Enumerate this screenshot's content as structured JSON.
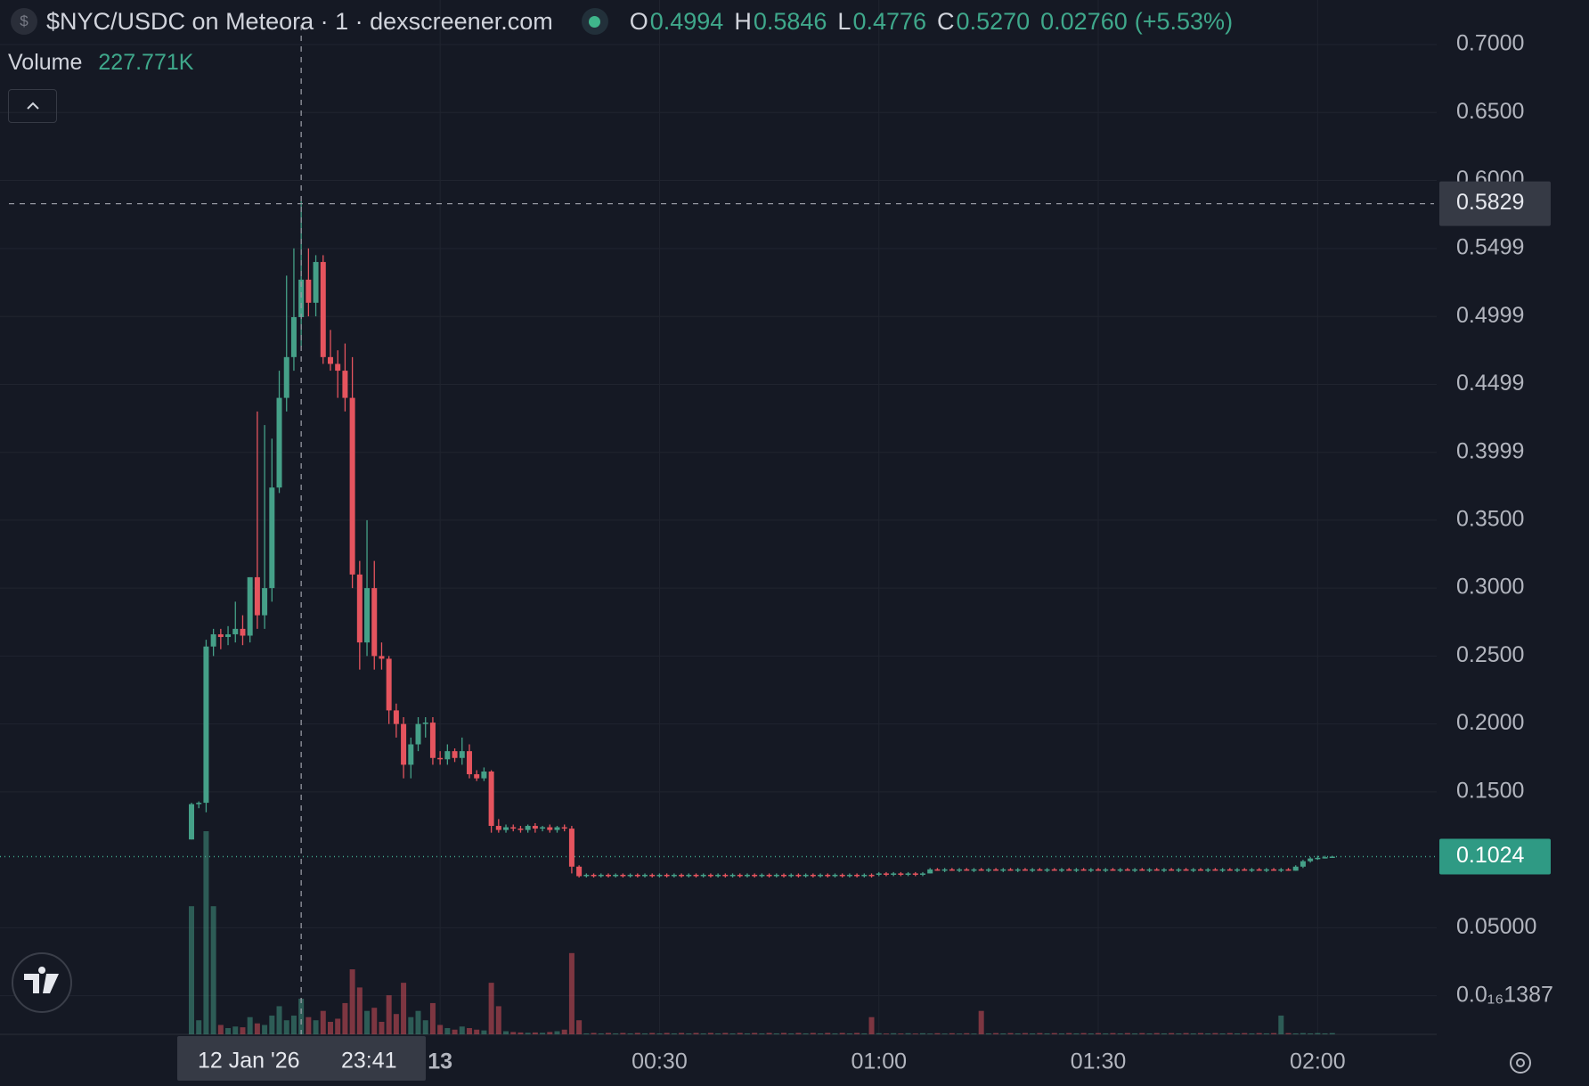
{
  "chart_data": {
    "type": "candlestick",
    "title": "$NYC/USDC on Meteora · 1 · dexscreener.com",
    "icon": "$",
    "legend": [
      {
        "key": "O",
        "value": "0.4994"
      },
      {
        "key": "H",
        "value": "0.5846"
      },
      {
        "key": "L",
        "value": "0.4776"
      },
      {
        "key": "C",
        "value": "0.5270"
      }
    ],
    "change": "0.02760",
    "change_pct": "(+5.53%)",
    "volume_legend": {
      "label": "Volume",
      "value": 227771,
      "value_label": "227.771K"
    },
    "crosshair_date": "12 Jan '26",
    "crosshair_index": 15,
    "crosshair_price": 0.5829,
    "last_price": 0.1024,
    "up_color": "#45a088",
    "down_color": "#e5545e",
    "ylim": [
      -0.0284,
      0.7328
    ],
    "yticks": [
      {
        "value": 0.7,
        "label": "0.7000"
      },
      {
        "value": 0.65,
        "label": "0.6500"
      },
      {
        "value": 0.6,
        "label": "0.6000"
      },
      {
        "value": 0.5499,
        "label": "0.5499"
      },
      {
        "value": 0.4999,
        "label": "0.4999"
      },
      {
        "value": 0.4499,
        "label": "0.4499"
      },
      {
        "value": 0.3999,
        "label": "0.3999"
      },
      {
        "value": 0.35,
        "label": "0.3500"
      },
      {
        "value": 0.3,
        "label": "0.3000"
      },
      {
        "value": 0.25,
        "label": "0.2500"
      },
      {
        "value": 0.2,
        "label": "0.2000"
      },
      {
        "value": 0.15,
        "label": "0.1500"
      },
      {
        "value": 0.05,
        "label": "0.05000"
      },
      {
        "value": 1.387e-17,
        "label": "0.0₁₆1387"
      }
    ],
    "xticks": [
      {
        "value": "00:00",
        "label": "13"
      },
      "00:30",
      "01:00",
      "01:30",
      "02:00"
    ],
    "grid": true,
    "x": [
      "23:26",
      "23:27",
      "23:28",
      "23:29",
      "23:30",
      "23:31",
      "23:32",
      "23:33",
      "23:34",
      "23:35",
      "23:36",
      "23:37",
      "23:38",
      "23:39",
      "23:40",
      "23:41",
      "23:42",
      "23:43",
      "23:44",
      "23:45",
      "23:46",
      "23:47",
      "23:48",
      "23:49",
      "23:50",
      "23:51",
      "23:52",
      "23:53",
      "23:54",
      "23:55",
      "23:56",
      "23:57",
      "23:58",
      "23:59",
      "00:00",
      "00:01",
      "00:02",
      "00:03",
      "00:04",
      "00:05",
      "00:06",
      "00:07",
      "00:08",
      "00:09",
      "00:10",
      "00:11",
      "00:12",
      "00:13",
      "00:14",
      "00:15",
      "00:16",
      "00:17",
      "00:18",
      "00:19",
      "00:20",
      "00:21",
      "00:22",
      "00:23",
      "00:24",
      "00:25",
      "00:26",
      "00:27",
      "00:28",
      "00:29",
      "00:30",
      "00:31",
      "00:32",
      "00:33",
      "00:34",
      "00:35",
      "00:36",
      "00:37",
      "00:38",
      "00:39",
      "00:40",
      "00:41",
      "00:42",
      "00:43",
      "00:44",
      "00:45",
      "00:46",
      "00:47",
      "00:48",
      "00:49",
      "00:50",
      "00:51",
      "00:52",
      "00:53",
      "00:54",
      "00:55",
      "00:56",
      "00:57",
      "00:58",
      "00:59",
      "01:00",
      "01:01",
      "01:02",
      "01:03",
      "01:04",
      "01:05",
      "01:06",
      "01:07",
      "01:08",
      "01:09",
      "01:10",
      "01:11",
      "01:12",
      "01:13",
      "01:14",
      "01:15",
      "01:16",
      "01:17",
      "01:18",
      "01:19",
      "01:20",
      "01:21",
      "01:22",
      "01:23",
      "01:24",
      "01:25",
      "01:26",
      "01:27",
      "01:28",
      "01:29",
      "01:30",
      "01:31",
      "01:32",
      "01:33",
      "01:34",
      "01:35",
      "01:36",
      "01:37",
      "01:38",
      "01:39",
      "01:40",
      "01:41",
      "01:42",
      "01:43",
      "01:44",
      "01:45",
      "01:46",
      "01:47",
      "01:48",
      "01:49",
      "01:50",
      "01:51",
      "01:52",
      "01:53",
      "01:54",
      "01:55",
      "01:56",
      "01:57",
      "01:58",
      "01:59",
      "02:00",
      "02:01",
      "02:02"
    ],
    "ohlc": [
      [
        0.115,
        0.142,
        0.115,
        0.141
      ],
      [
        0.141,
        0.143,
        0.138,
        0.142
      ],
      [
        0.142,
        0.262,
        0.135,
        0.257
      ],
      [
        0.257,
        0.27,
        0.25,
        0.266
      ],
      [
        0.266,
        0.27,
        0.255,
        0.264
      ],
      [
        0.264,
        0.272,
        0.258,
        0.266
      ],
      [
        0.266,
        0.29,
        0.26,
        0.27
      ],
      [
        0.27,
        0.28,
        0.258,
        0.265
      ],
      [
        0.265,
        0.308,
        0.26,
        0.308
      ],
      [
        0.308,
        0.43,
        0.27,
        0.28
      ],
      [
        0.28,
        0.42,
        0.27,
        0.3
      ],
      [
        0.3,
        0.41,
        0.29,
        0.374
      ],
      [
        0.374,
        0.46,
        0.37,
        0.44
      ],
      [
        0.44,
        0.53,
        0.43,
        0.47
      ],
      [
        0.47,
        0.55,
        0.46,
        0.4994
      ],
      [
        0.4994,
        0.5846,
        0.4776,
        0.527
      ],
      [
        0.527,
        0.55,
        0.5,
        0.51
      ],
      [
        0.51,
        0.545,
        0.5,
        0.54
      ],
      [
        0.54,
        0.545,
        0.465,
        0.47
      ],
      [
        0.47,
        0.49,
        0.46,
        0.465
      ],
      [
        0.465,
        0.475,
        0.44,
        0.46
      ],
      [
        0.46,
        0.48,
        0.43,
        0.44
      ],
      [
        0.44,
        0.47,
        0.3,
        0.31
      ],
      [
        0.31,
        0.32,
        0.24,
        0.26
      ],
      [
        0.26,
        0.35,
        0.25,
        0.3
      ],
      [
        0.3,
        0.32,
        0.24,
        0.25
      ],
      [
        0.25,
        0.26,
        0.24,
        0.248
      ],
      [
        0.248,
        0.25,
        0.2,
        0.21
      ],
      [
        0.21,
        0.215,
        0.19,
        0.2
      ],
      [
        0.2,
        0.205,
        0.16,
        0.17
      ],
      [
        0.17,
        0.19,
        0.16,
        0.185
      ],
      [
        0.185,
        0.205,
        0.18,
        0.2
      ],
      [
        0.2,
        0.205,
        0.19,
        0.201
      ],
      [
        0.201,
        0.205,
        0.17,
        0.175
      ],
      [
        0.175,
        0.18,
        0.17,
        0.174
      ],
      [
        0.174,
        0.185,
        0.17,
        0.18
      ],
      [
        0.18,
        0.182,
        0.172,
        0.175
      ],
      [
        0.175,
        0.19,
        0.17,
        0.18
      ],
      [
        0.18,
        0.185,
        0.16,
        0.163
      ],
      [
        0.163,
        0.166,
        0.158,
        0.16
      ],
      [
        0.16,
        0.168,
        0.158,
        0.165
      ],
      [
        0.165,
        0.166,
        0.12,
        0.125
      ],
      [
        0.125,
        0.13,
        0.12,
        0.122
      ],
      [
        0.122,
        0.126,
        0.12,
        0.124
      ],
      [
        0.124,
        0.126,
        0.121,
        0.123
      ],
      [
        0.123,
        0.125,
        0.12,
        0.122
      ],
      [
        0.122,
        0.126,
        0.12,
        0.125
      ],
      [
        0.125,
        0.127,
        0.12,
        0.123
      ],
      [
        0.123,
        0.125,
        0.121,
        0.124
      ],
      [
        0.124,
        0.126,
        0.12,
        0.122
      ],
      [
        0.122,
        0.125,
        0.12,
        0.124
      ],
      [
        0.124,
        0.126,
        0.121,
        0.123
      ],
      [
        0.123,
        0.125,
        0.09,
        0.095
      ],
      [
        0.095,
        0.096,
        0.087,
        0.088
      ],
      [
        0.088,
        0.09,
        0.087,
        0.089
      ],
      [
        0.089,
        0.09,
        0.087,
        0.088
      ],
      [
        0.088,
        0.09,
        0.087,
        0.089
      ],
      [
        0.089,
        0.09,
        0.087,
        0.088
      ],
      [
        0.088,
        0.09,
        0.087,
        0.089
      ],
      [
        0.089,
        0.09,
        0.087,
        0.088
      ],
      [
        0.088,
        0.09,
        0.087,
        0.089
      ],
      [
        0.089,
        0.09,
        0.087,
        0.088
      ],
      [
        0.088,
        0.09,
        0.087,
        0.089
      ],
      [
        0.089,
        0.09,
        0.087,
        0.088
      ],
      [
        0.088,
        0.09,
        0.087,
        0.089
      ],
      [
        0.089,
        0.09,
        0.087,
        0.088
      ],
      [
        0.088,
        0.09,
        0.087,
        0.089
      ],
      [
        0.089,
        0.09,
        0.087,
        0.088
      ],
      [
        0.088,
        0.09,
        0.087,
        0.089
      ],
      [
        0.089,
        0.09,
        0.087,
        0.088
      ],
      [
        0.088,
        0.09,
        0.087,
        0.089
      ],
      [
        0.089,
        0.09,
        0.087,
        0.088
      ],
      [
        0.088,
        0.09,
        0.087,
        0.089
      ],
      [
        0.089,
        0.09,
        0.087,
        0.088
      ],
      [
        0.088,
        0.09,
        0.087,
        0.089
      ],
      [
        0.089,
        0.09,
        0.087,
        0.088
      ],
      [
        0.088,
        0.09,
        0.087,
        0.089
      ],
      [
        0.089,
        0.09,
        0.087,
        0.088
      ],
      [
        0.088,
        0.09,
        0.087,
        0.089
      ],
      [
        0.089,
        0.09,
        0.087,
        0.088
      ],
      [
        0.088,
        0.09,
        0.087,
        0.089
      ],
      [
        0.089,
        0.09,
        0.087,
        0.088
      ],
      [
        0.088,
        0.09,
        0.087,
        0.089
      ],
      [
        0.089,
        0.09,
        0.087,
        0.088
      ],
      [
        0.088,
        0.09,
        0.087,
        0.089
      ],
      [
        0.089,
        0.09,
        0.087,
        0.088
      ],
      [
        0.088,
        0.09,
        0.087,
        0.089
      ],
      [
        0.089,
        0.09,
        0.087,
        0.088
      ],
      [
        0.088,
        0.09,
        0.087,
        0.089
      ],
      [
        0.089,
        0.09,
        0.087,
        0.088
      ],
      [
        0.088,
        0.09,
        0.087,
        0.089
      ],
      [
        0.089,
        0.09,
        0.087,
        0.088
      ],
      [
        0.088,
        0.09,
        0.087,
        0.089
      ],
      [
        0.089,
        0.09,
        0.087,
        0.088
      ],
      [
        0.089,
        0.091,
        0.088,
        0.09
      ],
      [
        0.09,
        0.091,
        0.088,
        0.089
      ],
      [
        0.089,
        0.091,
        0.088,
        0.09
      ],
      [
        0.09,
        0.091,
        0.088,
        0.089
      ],
      [
        0.089,
        0.091,
        0.088,
        0.09
      ],
      [
        0.09,
        0.091,
        0.088,
        0.089
      ],
      [
        0.089,
        0.091,
        0.088,
        0.09
      ],
      [
        0.09,
        0.094,
        0.09,
        0.093
      ],
      [
        0.093,
        0.094,
        0.092,
        0.092
      ],
      [
        0.092,
        0.094,
        0.091,
        0.093
      ],
      [
        0.093,
        0.094,
        0.092,
        0.092
      ],
      [
        0.092,
        0.094,
        0.091,
        0.093
      ],
      [
        0.093,
        0.094,
        0.092,
        0.092
      ],
      [
        0.092,
        0.094,
        0.091,
        0.093
      ],
      [
        0.093,
        0.094,
        0.092,
        0.092
      ],
      [
        0.092,
        0.094,
        0.091,
        0.093
      ],
      [
        0.093,
        0.094,
        0.092,
        0.092
      ],
      [
        0.092,
        0.094,
        0.091,
        0.093
      ],
      [
        0.093,
        0.094,
        0.092,
        0.092
      ],
      [
        0.092,
        0.094,
        0.091,
        0.093
      ],
      [
        0.093,
        0.094,
        0.092,
        0.092
      ],
      [
        0.092,
        0.094,
        0.091,
        0.093
      ],
      [
        0.093,
        0.094,
        0.092,
        0.092
      ],
      [
        0.092,
        0.094,
        0.091,
        0.093
      ],
      [
        0.093,
        0.094,
        0.092,
        0.092
      ],
      [
        0.092,
        0.094,
        0.091,
        0.093
      ],
      [
        0.093,
        0.094,
        0.092,
        0.092
      ],
      [
        0.092,
        0.094,
        0.091,
        0.093
      ],
      [
        0.093,
        0.094,
        0.092,
        0.092
      ],
      [
        0.092,
        0.094,
        0.091,
        0.093
      ],
      [
        0.093,
        0.094,
        0.092,
        0.092
      ],
      [
        0.092,
        0.094,
        0.091,
        0.093
      ],
      [
        0.093,
        0.094,
        0.092,
        0.092
      ],
      [
        0.092,
        0.094,
        0.091,
        0.093
      ],
      [
        0.093,
        0.094,
        0.092,
        0.092
      ],
      [
        0.092,
        0.094,
        0.091,
        0.093
      ],
      [
        0.093,
        0.094,
        0.092,
        0.092
      ],
      [
        0.092,
        0.094,
        0.091,
        0.093
      ],
      [
        0.093,
        0.094,
        0.092,
        0.092
      ],
      [
        0.092,
        0.094,
        0.091,
        0.093
      ],
      [
        0.093,
        0.094,
        0.092,
        0.092
      ],
      [
        0.092,
        0.094,
        0.091,
        0.093
      ],
      [
        0.093,
        0.094,
        0.092,
        0.092
      ],
      [
        0.092,
        0.094,
        0.091,
        0.093
      ],
      [
        0.093,
        0.094,
        0.092,
        0.092
      ],
      [
        0.092,
        0.094,
        0.091,
        0.093
      ],
      [
        0.093,
        0.094,
        0.092,
        0.092
      ],
      [
        0.092,
        0.094,
        0.091,
        0.093
      ],
      [
        0.093,
        0.094,
        0.092,
        0.092
      ],
      [
        0.092,
        0.094,
        0.091,
        0.093
      ],
      [
        0.093,
        0.094,
        0.092,
        0.092
      ],
      [
        0.092,
        0.094,
        0.091,
        0.093
      ],
      [
        0.093,
        0.094,
        0.092,
        0.092
      ],
      [
        0.092,
        0.094,
        0.091,
        0.093
      ],
      [
        0.093,
        0.094,
        0.092,
        0.092
      ],
      [
        0.092,
        0.094,
        0.091,
        0.093
      ],
      [
        0.093,
        0.094,
        0.092,
        0.092
      ],
      [
        0.092,
        0.096,
        0.092,
        0.095
      ],
      [
        0.095,
        0.1,
        0.094,
        0.099
      ],
      [
        0.099,
        0.102,
        0.098,
        0.101
      ],
      [
        0.101,
        0.103,
        0.1,
        0.1015
      ],
      [
        0.1015,
        0.103,
        0.101,
        0.102
      ],
      [
        0.102,
        0.103,
        0.1015,
        0.1024
      ]
    ],
    "volume": [
      820000,
      90000,
      1300000,
      820000,
      60000,
      40000,
      50000,
      45000,
      110000,
      70000,
      60000,
      120000,
      180000,
      90000,
      120000,
      227771,
      110000,
      90000,
      150000,
      80000,
      100000,
      200000,
      416000,
      300000,
      150000,
      170000,
      80000,
      250000,
      130000,
      330000,
      110000,
      150000,
      90000,
      200000,
      60000,
      40000,
      30000,
      50000,
      40000,
      30000,
      25000,
      330000,
      180000,
      20000,
      15000,
      12000,
      10000,
      12000,
      10000,
      15000,
      20000,
      30000,
      520000,
      90000,
      6000,
      9000,
      6000,
      9000,
      6000,
      9000,
      6000,
      9000,
      6000,
      9000,
      6000,
      9000,
      6000,
      9000,
      6000,
      9000,
      6000,
      9000,
      6000,
      9000,
      6000,
      9000,
      6000,
      9000,
      6000,
      9000,
      6000,
      9000,
      6000,
      9000,
      6000,
      9000,
      6000,
      9000,
      6000,
      9000,
      6000,
      9000,
      6000,
      110000,
      7000,
      5000,
      7000,
      5000,
      7000,
      5000,
      7000,
      5000,
      7000,
      5000,
      7000,
      5000,
      7000,
      5000,
      150000,
      6000,
      8000,
      6000,
      8000,
      6000,
      8000,
      6000,
      8000,
      6000,
      8000,
      6000,
      8000,
      6000,
      8000,
      6000,
      8000,
      6000,
      8000,
      6000,
      8000,
      6000,
      8000,
      6000,
      8000,
      6000,
      8000,
      6000,
      8000,
      6000,
      8000,
      6000,
      8000,
      6000,
      8000,
      6000,
      8000,
      6000,
      8000,
      6000,
      8000,
      120000,
      8000,
      6000,
      8000,
      6000,
      8000,
      6000,
      8000
    ]
  }
}
